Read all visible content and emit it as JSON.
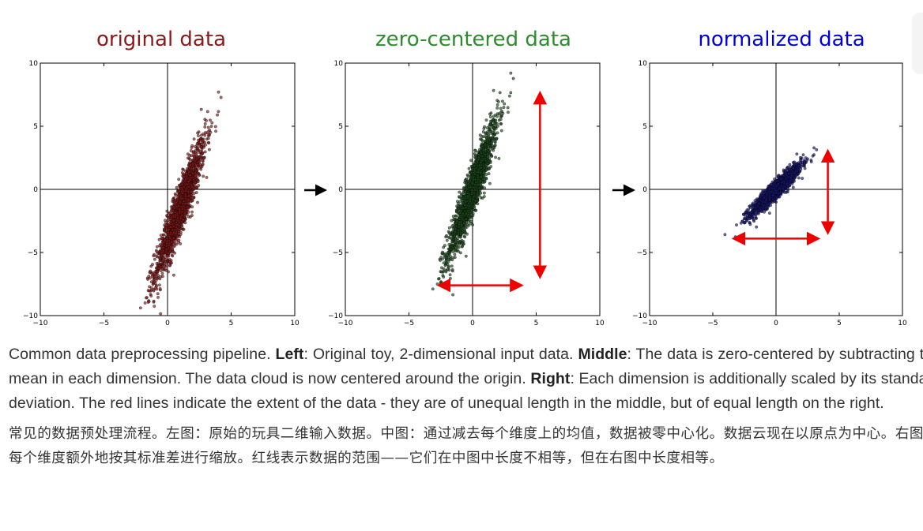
{
  "chart_data": [
    {
      "type": "scatter",
      "title": "original data",
      "title_color": "#8b1a1a",
      "point_color": "#8b1a1a",
      "xlim": [
        -10,
        10
      ],
      "ylim": [
        -10,
        10
      ],
      "xticks": [
        -10,
        -5,
        0,
        5,
        10
      ],
      "yticks": [
        -10,
        -5,
        0,
        5,
        10
      ],
      "distribution": {
        "mean": [
          1.0,
          -1.5
        ],
        "std_x": 1.0,
        "std_y": 2.8,
        "correlation": 0.93,
        "n": 1500
      },
      "arrows": []
    },
    {
      "type": "scatter",
      "title": "zero-centered data",
      "title_color": "#2e8b2e",
      "point_color": "#1f4f1f",
      "xlim": [
        -10,
        10
      ],
      "ylim": [
        -10,
        10
      ],
      "xticks": [
        -10,
        -5,
        0,
        5,
        10
      ],
      "yticks": [
        -10,
        -5,
        0,
        5,
        10
      ],
      "distribution": {
        "mean": [
          0,
          0
        ],
        "std_x": 1.0,
        "std_y": 2.8,
        "correlation": 0.93,
        "n": 1500
      },
      "arrows": [
        {
          "from": [
            5.3,
            7.6
          ],
          "to": [
            5.3,
            -6.9
          ]
        },
        {
          "from": [
            -2.6,
            -7.6
          ],
          "to": [
            3.8,
            -7.6
          ]
        }
      ]
    },
    {
      "type": "scatter",
      "title": "normalized data",
      "title_color": "#0000dd",
      "point_color": "#1a1a7a",
      "xlim": [
        -10,
        10
      ],
      "ylim": [
        -10,
        10
      ],
      "xticks": [
        -10,
        -5,
        0,
        5,
        10
      ],
      "yticks": [
        -10,
        -5,
        0,
        5,
        10
      ],
      "distribution": {
        "mean": [
          0,
          0
        ],
        "std_x": 1.0,
        "std_y": 1.0,
        "correlation": 0.93,
        "n": 1500
      },
      "arrows": [
        {
          "from": [
            4.1,
            3.0
          ],
          "to": [
            4.1,
            -3.4
          ]
        },
        {
          "from": [
            -3.3,
            -3.9
          ],
          "to": [
            3.3,
            -3.9
          ]
        }
      ]
    }
  ],
  "caption": {
    "en_1": "Common data preprocessing pipeline. ",
    "en_left_label": "Left",
    "en_2": ": Original toy, 2-dimensional input data. ",
    "en_middle_label": "Middle",
    "en_3": ": The data is zero-centered by subtracting the mean in each dimension. The data cloud is now centered around the origin. ",
    "en_right_label": "Right",
    "en_4": ": Each dimension is additionally scaled by its standard deviation. The red lines indicate the extent of the data - they are of unequal length in the middle, but of equal length on the right.",
    "zh": "常见的数据预处理流程。左图：原始的玩具二维输入数据。中图：通过减去每个维度上的均值，数据被零中心化。数据云现在以原点为中心。右图：每个维度额外地按其标准差进行缩放。红线表示数据的范围——它们在中图中长度不相等，但在右图中长度相等。"
  }
}
